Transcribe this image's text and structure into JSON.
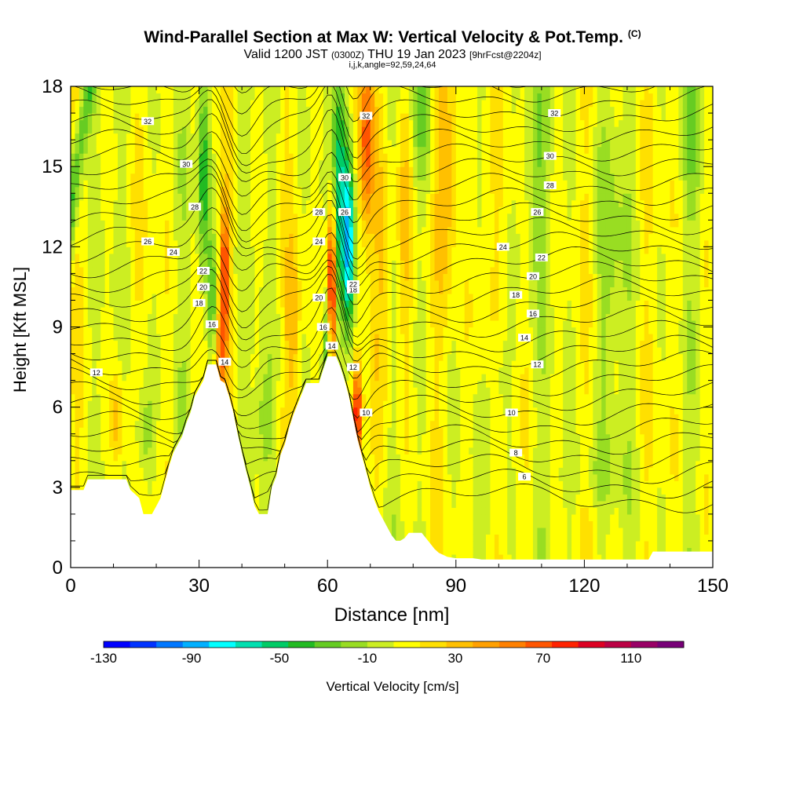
{
  "title": {
    "main": "Wind-Parallel Section at Max W: Vertical Velocity & Pot.Temp.",
    "copyright": "(C)",
    "sub_valid": "Valid 1200 JST",
    "sub_utc": "(0300Z)",
    "sub_date": "THU 19 Jan 2023",
    "sub_fcst": "[9hrFcst@2204z]",
    "line3": "i,j,k,angle=92,59,24,64"
  },
  "chart_data": {
    "type": "heatmap",
    "xlabel": "Distance [nm]",
    "ylabel": "Height [Kft MSL]",
    "xlim": [
      0,
      150
    ],
    "ylim": [
      0,
      18
    ],
    "x_ticks": [
      0,
      30,
      60,
      90,
      120,
      150
    ],
    "y_ticks": [
      0,
      3,
      6,
      9,
      12,
      15,
      18
    ],
    "colorbar": {
      "label": "Vertical Velocity [cm/s]",
      "tick_labels": [
        -130,
        -90,
        -50,
        -10,
        30,
        70,
        110
      ],
      "colors": [
        "#0000ff",
        "#0033ff",
        "#0077ff",
        "#00b0ff",
        "#00ffff",
        "#00e0b0",
        "#00cc66",
        "#22bb22",
        "#66cc22",
        "#99dd22",
        "#ccee22",
        "#ffff00",
        "#ffe000",
        "#ffc000",
        "#ffa000",
        "#ff8000",
        "#ff5500",
        "#ff2200",
        "#dd0022",
        "#bb0044",
        "#990066",
        "#770077"
      ]
    },
    "theta_contour_labels": [
      {
        "x": 6,
        "y": 7.3,
        "v": "12"
      },
      {
        "x": 18,
        "y": 16.7,
        "v": "32"
      },
      {
        "x": 27,
        "y": 15.1,
        "v": "30"
      },
      {
        "x": 29,
        "y": 13.5,
        "v": "28"
      },
      {
        "x": 18,
        "y": 12.2,
        "v": "26"
      },
      {
        "x": 24,
        "y": 11.8,
        "v": "24"
      },
      {
        "x": 31,
        "y": 11.1,
        "v": "22"
      },
      {
        "x": 31,
        "y": 10.5,
        "v": "20"
      },
      {
        "x": 30,
        "y": 9.9,
        "v": "18"
      },
      {
        "x": 33,
        "y": 9.1,
        "v": "16"
      },
      {
        "x": 36,
        "y": 7.7,
        "v": "14"
      },
      {
        "x": 69,
        "y": 16.9,
        "v": "32"
      },
      {
        "x": 64,
        "y": 14.6,
        "v": "30"
      },
      {
        "x": 64,
        "y": 13.3,
        "v": "26"
      },
      {
        "x": 58,
        "y": 13.3,
        "v": "28"
      },
      {
        "x": 58,
        "y": 12.2,
        "v": "24"
      },
      {
        "x": 66,
        "y": 10.4,
        "v": "18"
      },
      {
        "x": 66,
        "y": 10.6,
        "v": "22"
      },
      {
        "x": 58,
        "y": 10.1,
        "v": "20"
      },
      {
        "x": 59,
        "y": 9.0,
        "v": "16"
      },
      {
        "x": 61,
        "y": 8.3,
        "v": "14"
      },
      {
        "x": 66,
        "y": 7.5,
        "v": "12"
      },
      {
        "x": 69,
        "y": 5.8,
        "v": "10"
      },
      {
        "x": 113,
        "y": 17.0,
        "v": "32"
      },
      {
        "x": 112,
        "y": 15.4,
        "v": "30"
      },
      {
        "x": 112,
        "y": 14.3,
        "v": "28"
      },
      {
        "x": 109,
        "y": 13.3,
        "v": "26"
      },
      {
        "x": 101,
        "y": 12.0,
        "v": "24"
      },
      {
        "x": 110,
        "y": 11.6,
        "v": "22"
      },
      {
        "x": 108,
        "y": 10.9,
        "v": "20"
      },
      {
        "x": 104,
        "y": 10.2,
        "v": "18"
      },
      {
        "x": 108,
        "y": 9.5,
        "v": "16"
      },
      {
        "x": 106,
        "y": 8.6,
        "v": "14"
      },
      {
        "x": 109,
        "y": 7.6,
        "v": "12"
      },
      {
        "x": 103,
        "y": 5.8,
        "v": "10"
      },
      {
        "x": 104,
        "y": 4.3,
        "v": "8"
      },
      {
        "x": 106,
        "y": 3.4,
        "v": "6"
      }
    ]
  }
}
